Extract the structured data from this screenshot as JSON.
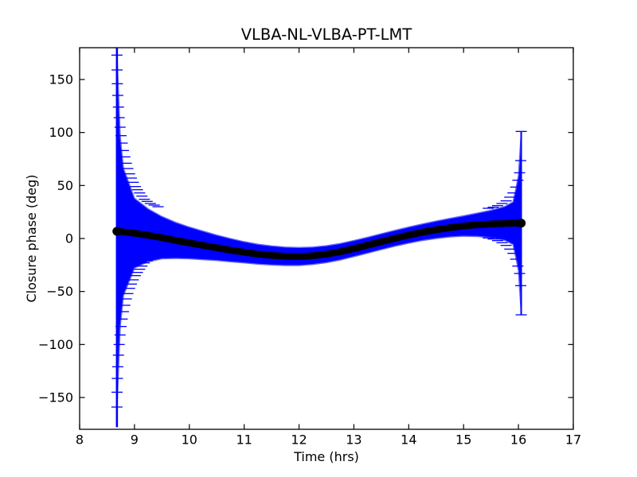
{
  "figure": {
    "background": "#ffffff",
    "frame_color": "#000000"
  },
  "chart_data": {
    "type": "line",
    "subtype": "errorbar-series-with-band",
    "title": "VLBA-NL-VLBA-PT-LMT",
    "xlabel": "Time (hrs)",
    "ylabel": "Closure phase (deg)",
    "xlim": [
      8,
      17
    ],
    "ylim": [
      -180,
      180
    ],
    "xticks": [
      8,
      9,
      10,
      11,
      12,
      13,
      14,
      15,
      16,
      17
    ],
    "yticks": [
      -150,
      -100,
      -50,
      0,
      50,
      100,
      150
    ],
    "grid": false,
    "legend": "none",
    "colors": {
      "error_band": "#0000ff",
      "error_band_edge": "#6666ff",
      "marker_line": "#000000"
    },
    "series": {
      "name": "closure-phase-vs-time",
      "t": [
        8.68,
        8.74,
        8.8,
        9.0,
        9.25,
        9.5,
        9.75,
        10.0,
        10.25,
        10.5,
        10.75,
        11.0,
        11.25,
        11.5,
        11.75,
        12.0,
        12.25,
        12.5,
        12.75,
        13.0,
        13.25,
        13.5,
        13.75,
        14.0,
        14.25,
        14.5,
        14.75,
        15.0,
        15.25,
        15.5,
        15.75,
        15.9,
        15.95,
        16.0,
        16.05
      ],
      "phase": [
        6.8,
        6.5,
        6.2,
        5.0,
        3.0,
        0.8,
        -1.8,
        -4.2,
        -6.5,
        -8.8,
        -11.0,
        -13.0,
        -14.8,
        -16.0,
        -16.8,
        -17.0,
        -16.3,
        -14.8,
        -12.5,
        -9.5,
        -6.3,
        -3.0,
        0.2,
        3.2,
        5.9,
        8.2,
        10.2,
        11.8,
        12.9,
        13.7,
        14.2,
        14.4,
        14.4,
        14.5,
        14.5
      ],
      "err": [
        170,
        90,
        60,
        33,
        25,
        20,
        17,
        15,
        13.5,
        12,
        11,
        10,
        9.4,
        9,
        8.7,
        8.5,
        8.2,
        8,
        7.8,
        7.6,
        7.5,
        7.5,
        7.5,
        7.6,
        7.8,
        8.2,
        8.8,
        9.6,
        11,
        13,
        16,
        20,
        32,
        45,
        86
      ]
    },
    "end_bars": [
      {
        "side": "left",
        "t": 8.68,
        "center": 7.0,
        "half_height": 185,
        "clipped_at_axes": true,
        "caps_t_h": [
          [
            8.68,
            166
          ],
          [
            8.682,
            152
          ],
          [
            8.688,
            139
          ],
          [
            8.696,
            128
          ],
          [
            8.708,
            117
          ],
          [
            8.721,
            107
          ],
          [
            8.737,
            98
          ],
          [
            8.755,
            90
          ],
          [
            8.776,
            83
          ],
          [
            8.798,
            76
          ],
          [
            8.824,
            70
          ],
          [
            8.851,
            64
          ],
          [
            8.879,
            59
          ],
          [
            8.91,
            54
          ],
          [
            8.943,
            50
          ],
          [
            8.978,
            46
          ],
          [
            9.015,
            42
          ],
          [
            9.053,
            39
          ],
          [
            9.094,
            36
          ],
          [
            9.136,
            33
          ],
          [
            9.18,
            30
          ],
          [
            9.23,
            28
          ],
          [
            9.29,
            26
          ],
          [
            9.36,
            24.5
          ],
          [
            9.43,
            23
          ]
        ]
      },
      {
        "side": "right",
        "t": 16.05,
        "center": 14.5,
        "half_height": 86.5,
        "clipped_at_axes": false,
        "caps_t_h": [
          [
            16.05,
            86.5
          ],
          [
            16.042,
            59
          ],
          [
            16.021,
            47.5
          ],
          [
            15.99,
            40.5
          ],
          [
            15.95,
            34
          ],
          [
            15.9,
            28.5
          ],
          [
            15.842,
            24.5
          ],
          [
            15.775,
            21
          ],
          [
            15.7,
            18.5
          ],
          [
            15.62,
            16.5
          ],
          [
            15.54,
            15
          ],
          [
            15.45,
            14
          ]
        ]
      }
    ],
    "end_markers": [
      {
        "t": 8.68,
        "phase": 6.8
      },
      {
        "t": 16.05,
        "phase": 14.5
      }
    ]
  }
}
